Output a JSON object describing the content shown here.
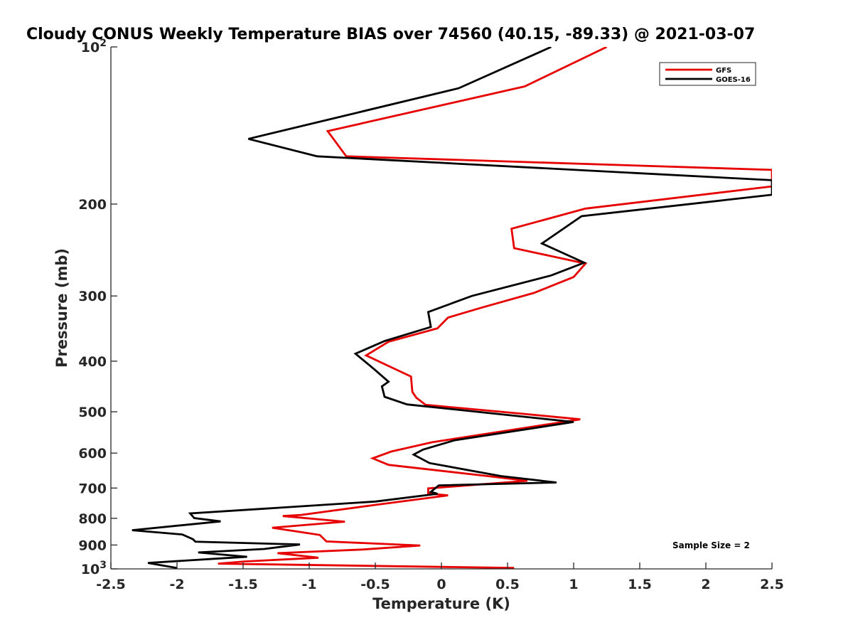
{
  "chart_data": {
    "type": "line",
    "title": "Cloudy CONUS Weekly Temperature BIAS over 74560 (40.15, -89.33) @ 2021-03-07",
    "xlabel": "Temperature (K)",
    "ylabel": "Pressure (mb)",
    "xlim": [
      -2.5,
      2.5
    ],
    "ylim": [
      1000,
      100
    ],
    "y_scale": "log",
    "x_ticks": [
      "-2.5",
      "-2",
      "-1.5",
      "-1",
      "-0.5",
      "0",
      "0.5",
      "1",
      "1.5",
      "2",
      "2.5"
    ],
    "y_ticks": [
      {
        "value": 100,
        "base": "10",
        "exp": "2"
      },
      {
        "value": 200,
        "label": "200"
      },
      {
        "value": 300,
        "label": "300"
      },
      {
        "value": 400,
        "label": "400"
      },
      {
        "value": 500,
        "label": "500"
      },
      {
        "value": 600,
        "label": "600"
      },
      {
        "value": 700,
        "label": "700"
      },
      {
        "value": 800,
        "label": "800"
      },
      {
        "value": 900,
        "label": "900"
      },
      {
        "value": 1000,
        "base": "10",
        "exp": "3"
      }
    ],
    "legend_position": "top-right",
    "annotation": "Sample Size = 2",
    "series": [
      {
        "name": "GFS",
        "color": "#e60000",
        "points": [
          [
            1.25,
            100
          ],
          [
            0.63,
            119
          ],
          [
            -0.86,
            145
          ],
          [
            -0.72,
            162
          ],
          [
            2.5,
            172
          ],
          [
            2.5,
            185
          ],
          [
            1.09,
            204
          ],
          [
            0.53,
            223
          ],
          [
            0.55,
            243
          ],
          [
            1.09,
            260
          ],
          [
            1.0,
            276
          ],
          [
            0.7,
            296
          ],
          [
            0.3,
            316
          ],
          [
            0.05,
            330
          ],
          [
            -0.03,
            346
          ],
          [
            -0.4,
            367
          ],
          [
            -0.57,
            390
          ],
          [
            -0.23,
            428
          ],
          [
            -0.22,
            458
          ],
          [
            -0.19,
            470
          ],
          [
            -0.12,
            485
          ],
          [
            0.6,
            504
          ],
          [
            1.05,
            517
          ],
          [
            -0.07,
            572
          ],
          [
            -0.38,
            596
          ],
          [
            -0.52,
            614
          ],
          [
            -0.4,
            632
          ],
          [
            0.35,
            664
          ],
          [
            0.65,
            678
          ],
          [
            -0.1,
            701
          ],
          [
            -0.1,
            717
          ],
          [
            0.05,
            723
          ],
          [
            -0.5,
            754
          ],
          [
            -1.06,
            788
          ],
          [
            -1.2,
            792
          ],
          [
            -0.73,
            812
          ],
          [
            -1.28,
            834
          ],
          [
            -0.92,
            861
          ],
          [
            -0.87,
            886
          ],
          [
            -0.16,
            902
          ],
          [
            -0.59,
            918
          ],
          [
            -1.24,
            933
          ],
          [
            -0.93,
            952
          ],
          [
            -1.49,
            968
          ],
          [
            -1.69,
            977
          ],
          [
            0.55,
            996
          ]
        ]
      },
      {
        "name": "GOES-16",
        "color": "#000000",
        "points": [
          [
            0.83,
            100
          ],
          [
            0.13,
            120
          ],
          [
            -1.46,
            150
          ],
          [
            -0.94,
            162
          ],
          [
            2.5,
            180
          ],
          [
            2.5,
            192
          ],
          [
            1.06,
            211
          ],
          [
            0.76,
            238
          ],
          [
            1.08,
            259
          ],
          [
            0.83,
            274
          ],
          [
            0.23,
            300
          ],
          [
            -0.1,
            322
          ],
          [
            -0.08,
            344
          ],
          [
            -0.43,
            366
          ],
          [
            -0.65,
            387
          ],
          [
            -0.51,
            414
          ],
          [
            -0.4,
            438
          ],
          [
            -0.45,
            447
          ],
          [
            -0.43,
            468
          ],
          [
            -0.26,
            484
          ],
          [
            1.0,
            523
          ],
          [
            0.1,
            567
          ],
          [
            -0.14,
            591
          ],
          [
            -0.21,
            604
          ],
          [
            -0.09,
            627
          ],
          [
            0.45,
            664
          ],
          [
            0.87,
            683
          ],
          [
            -0.02,
            692
          ],
          [
            -0.08,
            712
          ],
          [
            -0.03,
            718
          ],
          [
            -0.5,
            743
          ],
          [
            -1.9,
            783
          ],
          [
            -1.87,
            799
          ],
          [
            -1.67,
            811
          ],
          [
            -2.34,
            843
          ],
          [
            -1.96,
            859
          ],
          [
            -1.88,
            877
          ],
          [
            -1.86,
            887
          ],
          [
            -1.07,
            898
          ],
          [
            -1.34,
            916
          ],
          [
            -1.84,
            930
          ],
          [
            -1.47,
            948
          ],
          [
            -1.59,
            952
          ],
          [
            -2.22,
            974
          ],
          [
            -2.0,
            996
          ]
        ]
      }
    ]
  }
}
